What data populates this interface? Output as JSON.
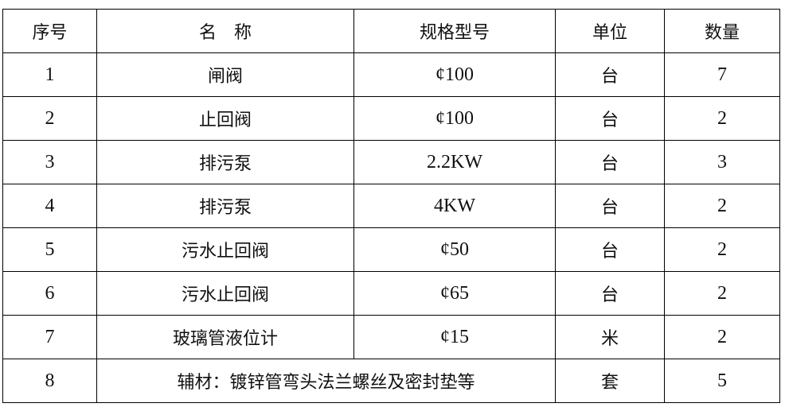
{
  "table": {
    "headers": [
      "序号",
      "名　称",
      "规格型号",
      "单位",
      "数量"
    ],
    "rows": [
      [
        "1",
        "闸阀",
        "¢100",
        "台",
        "7"
      ],
      [
        "2",
        "止回阀",
        "¢100",
        "台",
        "2"
      ],
      [
        "3",
        "排污泵",
        "2.2KW",
        "台",
        "3"
      ],
      [
        "4",
        "排污泵",
        "4KW",
        "台",
        "2"
      ],
      [
        "5",
        "污水止回阀",
        "¢50",
        "台",
        "2"
      ],
      [
        "6",
        "污水止回阀",
        "¢65",
        "台",
        "2"
      ],
      [
        "7",
        "玻璃管液位计",
        "¢15",
        "米",
        "2"
      ]
    ],
    "last_row": {
      "no": "8",
      "name": "辅材：镀锌管弯头法兰螺丝及密封垫等",
      "unit": "套",
      "qty": "5"
    }
  }
}
